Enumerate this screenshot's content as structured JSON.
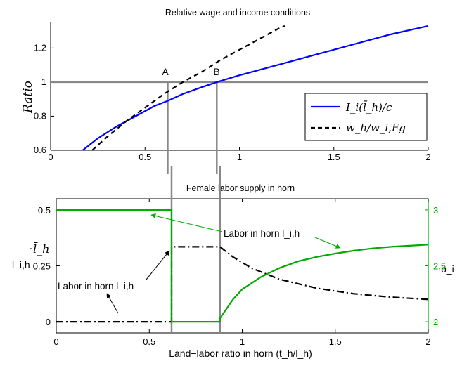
{
  "chart_data": [
    {
      "type": "line",
      "title": "Relative wage and income conditions",
      "ylabel": "Ratio",
      "xlim": [
        0,
        2
      ],
      "ylim": [
        0.6,
        1.35
      ],
      "xticks": [
        "0",
        "0.5",
        "1",
        "1.5",
        "2"
      ],
      "yticks": [
        "0.6",
        "0.8",
        "1",
        "1.2"
      ],
      "legend_position": "center-right",
      "annotations": [
        "A",
        "B"
      ],
      "series": [
        {
          "name": "I_i(l̄_h)/c",
          "style": "solid",
          "color": "#0000ff",
          "x": [
            0.17,
            0.25,
            0.35,
            0.45,
            0.55,
            0.62,
            0.7,
            0.8,
            0.88,
            1.0,
            1.2,
            1.4,
            1.6,
            1.8,
            2.0
          ],
          "y": [
            0.6,
            0.67,
            0.74,
            0.8,
            0.86,
            0.89,
            0.93,
            0.97,
            1.0,
            1.04,
            1.1,
            1.16,
            1.22,
            1.28,
            1.33
          ]
        },
        {
          "name": "w_h/w_i,Fg",
          "style": "dashed",
          "color": "#000000",
          "x": [
            0.22,
            0.3,
            0.4,
            0.5,
            0.6,
            0.7,
            0.8,
            0.9,
            1.0,
            1.1,
            1.2,
            1.24
          ],
          "y": [
            0.6,
            0.68,
            0.77,
            0.85,
            0.93,
            1.0,
            1.06,
            1.13,
            1.19,
            1.25,
            1.31,
            1.33
          ]
        }
      ],
      "hline": 1,
      "vlines": [
        0.62,
        0.88
      ]
    },
    {
      "type": "line",
      "title": "Female labor supply in horn",
      "xlabel": "Land−labor ratio in horn (t_h/l_h)",
      "ylabel": "l_i,h",
      "ylabel_right": "b_i",
      "xlim": [
        0,
        2
      ],
      "ylim": [
        -0.05,
        0.55
      ],
      "ylim_right": [
        1.9,
        3.1
      ],
      "xticks": [
        "0",
        "0.5",
        "1",
        "1.5",
        "2"
      ],
      "yticks": [
        "0",
        "0.25",
        "0.5"
      ],
      "yticks_right": [
        "2",
        "2.5",
        "3"
      ],
      "mark_label": "l̄_h",
      "annotations": [
        "Labor in horn l_i,h",
        "Labor in horn l_i,h"
      ],
      "series": [
        {
          "name": "labor-dashdot",
          "style": "dashdot",
          "color": "#000000",
          "x": [
            0,
            0.62,
            0.62,
            0.88,
            0.95,
            1.05,
            1.2,
            1.4,
            1.6,
            1.8,
            2.0
          ],
          "y": [
            0,
            0,
            0.335,
            0.335,
            0.29,
            0.24,
            0.19,
            0.15,
            0.125,
            0.11,
            0.1
          ]
        },
        {
          "name": "green",
          "style": "solid",
          "color": "#00aa00",
          "x": [
            0,
            0.62,
            0.62,
            0.88,
            0.88,
            0.95,
            1.0,
            1.1,
            1.2,
            1.3,
            1.4,
            1.5,
            1.6,
            1.7,
            1.8,
            1.9,
            2.0
          ],
          "y": [
            0.5,
            0.5,
            0.0,
            0.0,
            0.015,
            0.1,
            0.145,
            0.2,
            0.24,
            0.27,
            0.29,
            0.305,
            0.318,
            0.328,
            0.335,
            0.34,
            0.345
          ]
        }
      ],
      "vlines": [
        0.62,
        0.88
      ]
    }
  ]
}
